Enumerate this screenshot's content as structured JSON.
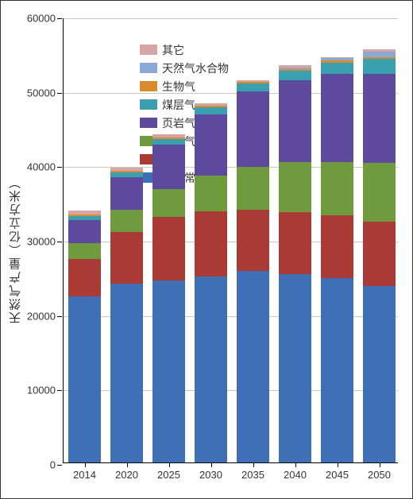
{
  "chart": {
    "type": "stacked-bar",
    "background_color": "#ffffff",
    "border_color": "#333333",
    "grid_color": "#c8c8c8",
    "text_color": "#333333",
    "ylabel": "天然气产量（亿立方米）",
    "ylabel_fontsize": 15,
    "tick_fontsize": 13,
    "legend_fontsize": 14,
    "ylim": [
      0,
      60000
    ],
    "ytick_step": 10000,
    "yticks": [
      0,
      10000,
      20000,
      30000,
      40000,
      50000,
      60000
    ],
    "categories": [
      "2014",
      "2020",
      "2025",
      "2030",
      "2035",
      "2040",
      "2045",
      "2050"
    ],
    "bar_width_ratio": 0.78,
    "series": [
      {
        "key": "onshore",
        "label": "陆上常规",
        "color": "#3f6fb5"
      },
      {
        "key": "offshore",
        "label": "海上",
        "color": "#a93a36"
      },
      {
        "key": "tight",
        "label": "致密气",
        "color": "#6f9b3e"
      },
      {
        "key": "shale",
        "label": "页岩气",
        "color": "#5d4a9c"
      },
      {
        "key": "cbm",
        "label": "煤层气",
        "color": "#3aa0b0"
      },
      {
        "key": "bio",
        "label": "生物气",
        "color": "#d98b2e"
      },
      {
        "key": "hydrate",
        "label": "天然气水合物",
        "color": "#8aa9d6"
      },
      {
        "key": "other",
        "label": "其它",
        "color": "#d6a6a6"
      }
    ],
    "legend_order": [
      "other",
      "hydrate",
      "bio",
      "cbm",
      "shale",
      "tight",
      "offshore",
      "onshore"
    ],
    "data": {
      "onshore": [
        22300,
        24000,
        24500,
        25000,
        25700,
        25300,
        24800,
        23700
      ],
      "offshore": [
        5000,
        7000,
        8500,
        8700,
        8200,
        8300,
        8400,
        8700
      ],
      "tight": [
        2200,
        3000,
        3700,
        4800,
        5800,
        6800,
        7200,
        7800
      ],
      "shale": [
        3100,
        4300,
        6000,
        8300,
        10200,
        11000,
        11800,
        12000
      ],
      "cbm": [
        500,
        700,
        800,
        900,
        1000,
        1200,
        1500,
        2000
      ],
      "bio": [
        200,
        200,
        200,
        200,
        200,
        300,
        300,
        300
      ],
      "hydrate": [
        0,
        0,
        0,
        0,
        0,
        200,
        300,
        700
      ],
      "other": [
        600,
        400,
        400,
        400,
        300,
        300,
        200,
        300
      ]
    }
  }
}
